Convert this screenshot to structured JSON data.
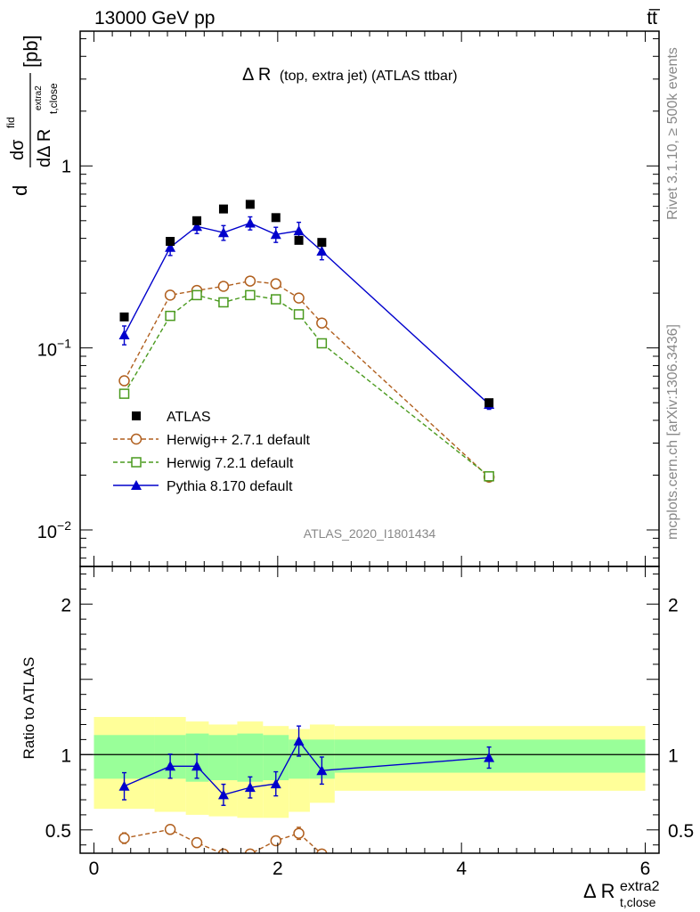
{
  "header": {
    "energy_label": "13000 GeV pp",
    "process_label": "tt̅"
  },
  "side_notes": {
    "rivet": "Rivet 3.1.10, ≥ 500k events",
    "mcplots": "mcplots.cern.ch [arXiv:1306.3436]"
  },
  "chart_data": [
    {
      "type": "scatter",
      "title_main": "Δ R",
      "title_sub": "(top, extra jet) (ATLAS ttbar)",
      "analysis_label": "ATLAS_2020_I1801434",
      "ylabel": "dσ^fid / dΔR^extra2_t,close [pb]",
      "ylabel_parts": {
        "num": "dσ",
        "num_sup": "fid",
        "prefix": "d",
        "den": "dΔ R",
        "den_sub": "t,close",
        "den_sup": "extra2",
        "unit": "[pb]"
      },
      "yscale": "log",
      "ylim": [
        0.0063,
        5.5
      ],
      "xlim": [
        -0.15,
        6.15
      ],
      "y_tick_labels": [
        {
          "value": 1,
          "text": "1"
        },
        {
          "value": 0.1,
          "base": "10",
          "exp": "−1"
        },
        {
          "value": 0.01,
          "base": "10",
          "exp": "−2"
        }
      ],
      "legend_position": "lower-left",
      "series": [
        {
          "name": "ATLAS",
          "marker": "square-filled",
          "color": "#000000",
          "x": [
            0.33,
            0.83,
            1.12,
            1.41,
            1.7,
            1.98,
            2.23,
            2.48,
            4.3
          ],
          "y": [
            0.148,
            0.385,
            0.5,
            0.58,
            0.615,
            0.52,
            0.39,
            0.38,
            0.05
          ]
        },
        {
          "name": "Herwig++ 2.7.1 default",
          "marker": "circle-open",
          "color": "#b05f1e",
          "linestyle": "dashed",
          "x": [
            0.33,
            0.83,
            1.12,
            1.41,
            1.7,
            1.98,
            2.23,
            2.48,
            4.3
          ],
          "y": [
            0.066,
            0.195,
            0.207,
            0.218,
            0.233,
            0.225,
            0.188,
            0.137,
            0.0195
          ]
        },
        {
          "name": "Herwig 7.2.1 default",
          "marker": "square-open",
          "color": "#4a9a1e",
          "linestyle": "dashed",
          "x": [
            0.33,
            0.83,
            1.12,
            1.41,
            1.7,
            1.98,
            2.23,
            2.48,
            4.3
          ],
          "y": [
            0.056,
            0.15,
            0.195,
            0.178,
            0.195,
            0.185,
            0.153,
            0.106,
            0.0197
          ]
        },
        {
          "name": "Pythia 8.170 default",
          "marker": "triangle-filled",
          "color": "#0000cc",
          "linestyle": "solid",
          "x": [
            0.33,
            0.83,
            1.12,
            1.41,
            1.7,
            1.98,
            2.23,
            2.48,
            4.3
          ],
          "y": [
            0.118,
            0.357,
            0.465,
            0.43,
            0.485,
            0.42,
            0.44,
            0.34,
            0.049
          ],
          "yerr": [
            0.014,
            0.035,
            0.04,
            0.04,
            0.04,
            0.04,
            0.05,
            0.035,
            0.003
          ]
        }
      ]
    },
    {
      "type": "scatter",
      "ylabel": "Ratio to ATLAS",
      "xlabel_main": "Δ R",
      "xlabel_sub": "t,close",
      "xlabel_sup": "extra2",
      "ylim": [
        0.345,
        2.25
      ],
      "xlim": [
        -0.15,
        6.15
      ],
      "x_ticks": [
        0,
        2,
        4,
        6
      ],
      "y_ticks": [
        0.5,
        1,
        2
      ],
      "reference_line": 1,
      "uncertainty_bands": {
        "edges": [
          0,
          0.66,
          1,
          1.25,
          1.56,
          1.84,
          2.12,
          2.35,
          2.62,
          6
        ],
        "inner_low": [
          0.84,
          0.84,
          0.82,
          0.83,
          0.82,
          0.83,
          0.84,
          0.84,
          0.88
        ],
        "inner_high": [
          1.13,
          1.13,
          1.14,
          1.13,
          1.14,
          1.13,
          1.1,
          1.1,
          1.1
        ],
        "outer_low": [
          0.64,
          0.62,
          0.6,
          0.59,
          0.58,
          0.58,
          0.62,
          0.68,
          0.76
        ],
        "outer_high": [
          1.25,
          1.25,
          1.22,
          1.2,
          1.22,
          1.19,
          1.17,
          1.2,
          1.19
        ]
      },
      "series": [
        {
          "name": "Pythia 8.170 default",
          "color": "#0000cc",
          "marker": "triangle-filled",
          "linestyle": "solid",
          "x": [
            0.33,
            0.83,
            1.12,
            1.41,
            1.7,
            1.98,
            2.23,
            2.48,
            4.3
          ],
          "y": [
            0.79,
            0.923,
            0.923,
            0.733,
            0.782,
            0.806,
            1.09,
            0.894,
            0.98
          ],
          "yerr": [
            0.09,
            0.08,
            0.08,
            0.07,
            0.07,
            0.08,
            0.1,
            0.09,
            0.07
          ]
        },
        {
          "name": "Herwig++ 2.7.1 default",
          "color": "#b05f1e",
          "marker": "circle-open",
          "linestyle": "dashed",
          "x": [
            0.33,
            0.83,
            1.12,
            1.41,
            1.7,
            1.98,
            2.23,
            2.48
          ],
          "y": [
            0.445,
            0.503,
            0.415,
            0.34,
            0.34,
            0.428,
            0.477,
            0.34
          ],
          "yerr": [
            0.035,
            0.03,
            0.03,
            0.02,
            0.02,
            0.03,
            0.04,
            0.02
          ]
        }
      ]
    }
  ]
}
